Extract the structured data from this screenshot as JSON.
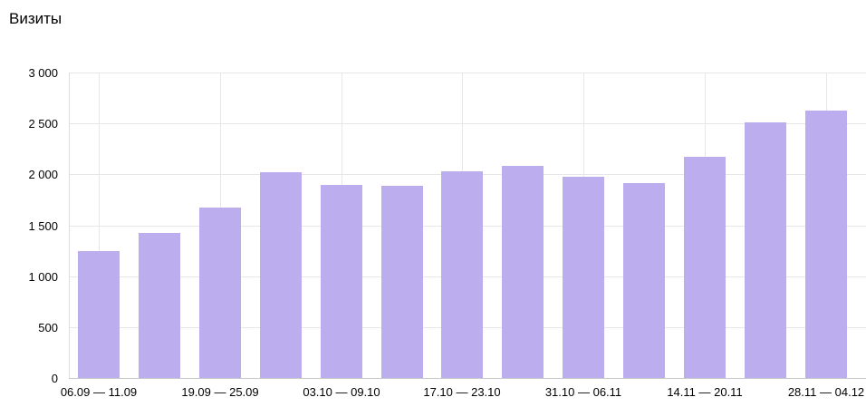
{
  "chart_data": {
    "type": "bar",
    "title": "Визиты",
    "values": [
      1250,
      1420,
      1670,
      2020,
      1900,
      1890,
      2030,
      2080,
      1975,
      1910,
      2170,
      2510,
      2630
    ],
    "x_tick_labels": [
      "06.09 — 11.09",
      "19.09 — 25.09",
      "03.10 — 09.10",
      "17.10 — 23.10",
      "31.10 — 06.11",
      "14.11 — 20.11",
      "28.11 — 04.12"
    ],
    "x_tick_positions": [
      0,
      2,
      4,
      6,
      8,
      10,
      12
    ],
    "y_ticks": [
      {
        "value": 0,
        "label": "0"
      },
      {
        "value": 500,
        "label": "500"
      },
      {
        "value": 1000,
        "label": "1 000"
      },
      {
        "value": 1500,
        "label": "1 500"
      },
      {
        "value": 2000,
        "label": "2 000"
      },
      {
        "value": 2500,
        "label": "2 500"
      },
      {
        "value": 3000,
        "label": "3 000"
      }
    ],
    "ylim": [
      0,
      3000
    ],
    "xlabel": "",
    "ylabel": "",
    "grid": true,
    "legend": "none",
    "bar_color": "#bcadee",
    "gridline_color": "#e7e7e7",
    "baseline_color": "#c9c9c9",
    "text_color": "#000000"
  }
}
